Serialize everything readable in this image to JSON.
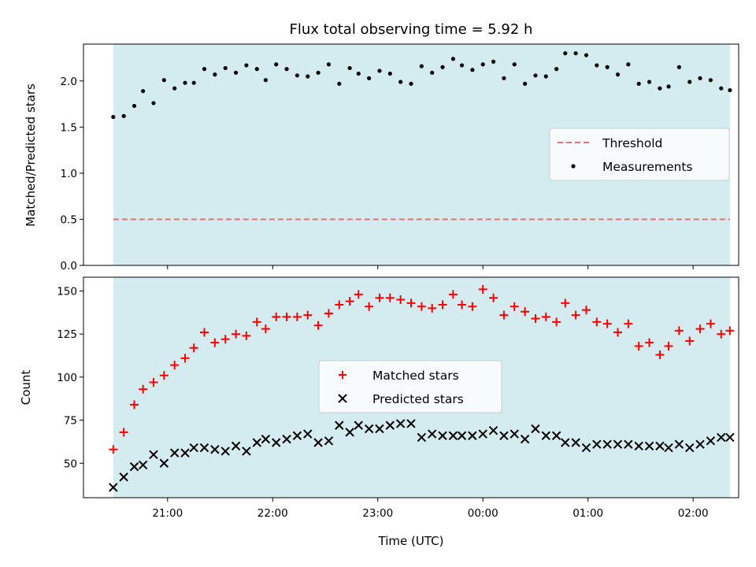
{
  "chart_data": [
    {
      "type": "scatter",
      "title": "Flux total observing time = 5.92 h",
      "ylabel": "Matched/Predicted stars",
      "xlabel": "",
      "ylim": [
        0,
        2.4
      ],
      "xlim": [
        "20:12",
        "02:26"
      ],
      "yticks": [
        0.0,
        0.5,
        1.0,
        1.5,
        2.0
      ],
      "ytick_labels": [
        "0.0",
        "0.5",
        "1.0",
        "1.5",
        "2.0"
      ],
      "xticks": [
        "21:00",
        "22:00",
        "23:00",
        "00:00",
        "01:00",
        "02:00"
      ],
      "xtick_labels_shown": false,
      "shaded_interval": [
        "20:29",
        "02:21"
      ],
      "shade_color": "#d4ebf0",
      "legend_position": "center-right",
      "threshold": {
        "name": "Threshold",
        "value": 0.5,
        "color": "#e57373",
        "style": "dashed",
        "x_range": [
          "20:29",
          "02:21"
        ]
      },
      "series": [
        {
          "name": "Measurements",
          "color": "#000000",
          "marker": "dot",
          "x": [
            "20:29",
            "20:35",
            "20:41",
            "20:46",
            "20:52",
            "20:58",
            "21:04",
            "21:10",
            "21:15",
            "21:21",
            "21:27",
            "21:33",
            "21:39",
            "21:45",
            "21:51",
            "21:56",
            "22:02",
            "22:08",
            "22:14",
            "22:20",
            "22:26",
            "22:32",
            "22:38",
            "22:44",
            "22:49",
            "22:55",
            "23:01",
            "23:07",
            "23:13",
            "23:19",
            "23:25",
            "23:31",
            "23:37",
            "23:43",
            "23:48",
            "23:54",
            "00:00",
            "00:06",
            "00:12",
            "00:18",
            "00:24",
            "00:30",
            "00:36",
            "00:42",
            "00:47",
            "00:53",
            "00:59",
            "01:05",
            "01:11",
            "01:17",
            "01:23",
            "01:29",
            "01:35",
            "01:41",
            "01:46",
            "01:52",
            "01:58",
            "02:04",
            "02:10",
            "02:16",
            "02:21"
          ],
          "y": [
            1.61,
            1.62,
            1.73,
            1.89,
            1.76,
            2.01,
            1.92,
            1.98,
            1.98,
            2.13,
            2.07,
            2.14,
            2.09,
            2.17,
            2.13,
            2.01,
            2.18,
            2.13,
            2.06,
            2.05,
            2.09,
            2.18,
            1.97,
            2.14,
            2.08,
            2.03,
            2.11,
            2.08,
            1.99,
            1.97,
            2.16,
            2.09,
            2.15,
            2.24,
            2.17,
            2.12,
            2.18,
            2.21,
            2.03,
            2.18,
            1.97,
            2.06,
            2.05,
            2.13,
            2.3,
            2.3,
            2.28,
            2.17,
            2.15,
            2.07,
            2.18,
            1.97,
            1.99,
            1.92,
            1.94,
            2.15,
            1.99,
            2.03,
            2.01,
            1.92,
            1.9
          ]
        }
      ]
    },
    {
      "type": "scatter",
      "title": "",
      "xlabel": "Time (UTC)",
      "ylabel": "Count",
      "ylim": [
        30,
        158
      ],
      "xlim": [
        "20:12",
        "02:26"
      ],
      "yticks": [
        50,
        75,
        100,
        125,
        150
      ],
      "ytick_labels": [
        "50",
        "75",
        "100",
        "125",
        "150"
      ],
      "xticks": [
        "21:00",
        "22:00",
        "23:00",
        "00:00",
        "01:00",
        "02:00"
      ],
      "xtick_labels": [
        "21:00",
        "22:00",
        "23:00",
        "00:00",
        "01:00",
        "02:00"
      ],
      "shaded_interval": [
        "20:29",
        "02:21"
      ],
      "shade_color": "#d4ebf0",
      "legend_position": "center",
      "series": [
        {
          "name": "Matched stars",
          "color": "#ff0000",
          "marker": "plus",
          "x": [
            "20:29",
            "20:35",
            "20:41",
            "20:46",
            "20:52",
            "20:58",
            "21:04",
            "21:10",
            "21:15",
            "21:21",
            "21:27",
            "21:33",
            "21:39",
            "21:45",
            "21:51",
            "21:56",
            "22:02",
            "22:08",
            "22:14",
            "22:20",
            "22:26",
            "22:32",
            "22:38",
            "22:44",
            "22:49",
            "22:55",
            "23:01",
            "23:07",
            "23:13",
            "23:19",
            "23:25",
            "23:31",
            "23:37",
            "23:43",
            "23:48",
            "23:54",
            "00:00",
            "00:06",
            "00:12",
            "00:18",
            "00:24",
            "00:30",
            "00:36",
            "00:42",
            "00:47",
            "00:53",
            "00:59",
            "01:05",
            "01:11",
            "01:17",
            "01:23",
            "01:29",
            "01:35",
            "01:41",
            "01:46",
            "01:52",
            "01:58",
            "02:04",
            "02:10",
            "02:16",
            "02:21"
          ],
          "y": [
            58,
            68,
            84,
            93,
            97,
            101,
            107,
            111,
            117,
            126,
            120,
            122,
            125,
            124,
            132,
            128,
            135,
            135,
            135,
            136,
            130,
            137,
            142,
            144,
            148,
            141,
            146,
            146,
            145,
            143,
            141,
            140,
            142,
            148,
            142,
            141,
            151,
            146,
            136,
            141,
            138,
            134,
            135,
            132,
            143,
            136,
            139,
            132,
            131,
            126,
            131,
            118,
            120,
            113,
            118,
            127,
            121,
            128,
            131,
            125,
            127
          ]
        },
        {
          "name": "Predicted stars",
          "color": "#000000",
          "marker": "x",
          "x": [
            "20:29",
            "20:35",
            "20:41",
            "20:46",
            "20:52",
            "20:58",
            "21:04",
            "21:10",
            "21:15",
            "21:21",
            "21:27",
            "21:33",
            "21:39",
            "21:45",
            "21:51",
            "21:56",
            "22:02",
            "22:08",
            "22:14",
            "22:20",
            "22:26",
            "22:32",
            "22:38",
            "22:44",
            "22:49",
            "22:55",
            "23:01",
            "23:07",
            "23:13",
            "23:19",
            "23:25",
            "23:31",
            "23:37",
            "23:43",
            "23:48",
            "23:54",
            "00:00",
            "00:06",
            "00:12",
            "00:18",
            "00:24",
            "00:30",
            "00:36",
            "00:42",
            "00:47",
            "00:53",
            "00:59",
            "01:05",
            "01:11",
            "01:17",
            "01:23",
            "01:29",
            "01:35",
            "01:41",
            "01:46",
            "01:52",
            "01:58",
            "02:04",
            "02:10",
            "02:16",
            "02:21"
          ],
          "y": [
            36,
            42,
            48,
            49,
            55,
            50,
            56,
            56,
            59,
            59,
            58,
            57,
            60,
            57,
            62,
            64,
            62,
            64,
            66,
            67,
            62,
            63,
            72,
            68,
            72,
            70,
            70,
            72,
            73,
            73,
            65,
            67,
            66,
            66,
            66,
            66,
            67,
            69,
            66,
            67,
            64,
            70,
            66,
            66,
            62,
            62,
            59,
            61,
            61,
            61,
            61,
            60,
            60,
            60,
            59,
            61,
            59,
            61,
            63,
            65,
            65
          ]
        }
      ]
    }
  ]
}
